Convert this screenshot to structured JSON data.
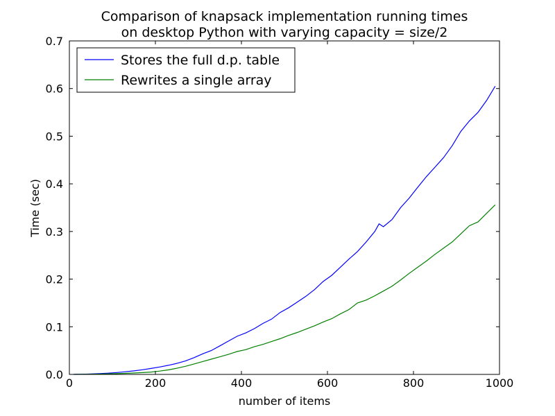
{
  "chart_data": {
    "type": "line",
    "title": "Comparison of knapsack implementation running times",
    "subtitle": "on desktop Python with varying capacity = size/2",
    "xlabel": "number of items",
    "ylabel": "Time (sec)",
    "xlim": [
      0,
      1000
    ],
    "ylim": [
      0,
      0.7
    ],
    "xticks": [
      "0",
      "200",
      "400",
      "600",
      "800",
      "1000"
    ],
    "yticks": [
      "0.0",
      "0.1",
      "0.2",
      "0.3",
      "0.4",
      "0.5",
      "0.6",
      "0.7"
    ],
    "grid": false,
    "legend_position": "upper-left",
    "x": [
      10,
      30,
      50,
      70,
      90,
      110,
      130,
      150,
      170,
      190,
      210,
      230,
      250,
      270,
      290,
      310,
      330,
      350,
      370,
      390,
      410,
      430,
      450,
      470,
      490,
      510,
      530,
      550,
      570,
      590,
      610,
      630,
      650,
      670,
      690,
      710,
      720,
      730,
      750,
      770,
      790,
      810,
      830,
      850,
      870,
      890,
      910,
      930,
      950,
      970,
      990
    ],
    "series": [
      {
        "name": "Stores the full d.p. table",
        "color": "#0000ff",
        "values": [
          0.0001,
          0.0004,
          0.0009,
          0.0016,
          0.0026,
          0.0039,
          0.0055,
          0.0074,
          0.0097,
          0.0125,
          0.0155,
          0.019,
          0.0232,
          0.0282,
          0.0352,
          0.0432,
          0.05,
          0.06,
          0.07,
          0.08,
          0.087,
          0.096,
          0.107,
          0.116,
          0.13,
          0.14,
          0.152,
          0.164,
          0.178,
          0.195,
          0.208,
          0.225,
          0.242,
          0.258,
          0.278,
          0.3,
          0.316,
          0.31,
          0.325,
          0.35,
          0.37,
          0.393,
          0.415,
          0.435,
          0.455,
          0.48,
          0.51,
          0.532,
          0.55,
          0.575,
          0.605
        ]
      },
      {
        "name": "Rewrites a single array",
        "color": "#008000",
        "values": [
          0.0,
          0.0002,
          0.0004,
          0.0007,
          0.0011,
          0.0016,
          0.0022,
          0.0029,
          0.0038,
          0.005,
          0.007,
          0.0095,
          0.013,
          0.017,
          0.022,
          0.027,
          0.032,
          0.037,
          0.042,
          0.048,
          0.052,
          0.058,
          0.063,
          0.069,
          0.075,
          0.082,
          0.088,
          0.095,
          0.102,
          0.11,
          0.117,
          0.127,
          0.136,
          0.15,
          0.156,
          0.165,
          0.17,
          0.175,
          0.185,
          0.198,
          0.212,
          0.225,
          0.238,
          0.252,
          0.265,
          0.278,
          0.295,
          0.312,
          0.32,
          0.338,
          0.356
        ]
      }
    ]
  }
}
